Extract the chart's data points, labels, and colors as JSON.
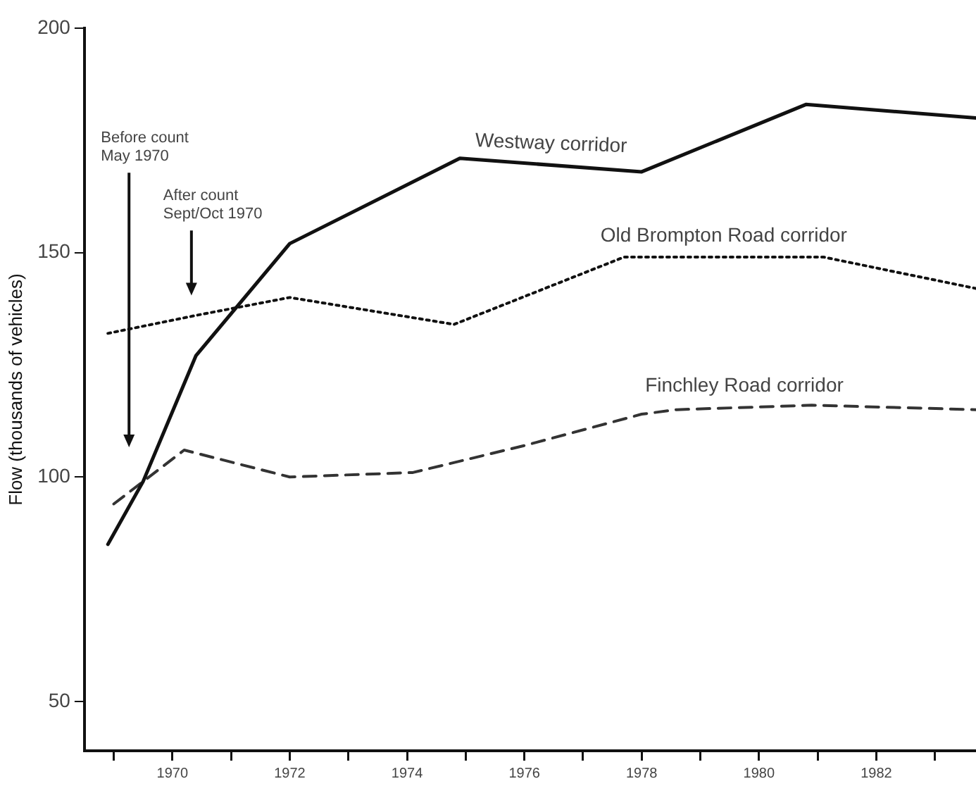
{
  "chart_data": {
    "type": "line",
    "ylabel": "Flow (thousands of vehicles)",
    "xlim": [
      1968.5,
      1983.7
    ],
    "ylim": [
      39,
      200
    ],
    "xticks": [
      {
        "value": 1969,
        "label": null
      },
      1970,
      {
        "value": 1971,
        "label": null
      },
      1972,
      {
        "value": 1973,
        "label": null
      },
      1974,
      {
        "value": 1975,
        "label": null
      },
      1976,
      {
        "value": 1977,
        "label": null
      },
      1978,
      {
        "value": 1979,
        "label": null
      },
      1980,
      {
        "value": 1981,
        "label": null
      },
      1982,
      {
        "value": 1983,
        "label": null
      }
    ],
    "yticks": [
      50,
      100,
      150,
      200
    ],
    "grid": false,
    "legend": false,
    "marker": "none",
    "series": [
      {
        "name": "Westway corridor",
        "color": "#111111",
        "line_style": "solid",
        "x": [
          1968.9,
          1969.5,
          1970.4,
          1972.0,
          1974.9,
          1978.0,
          1980.8,
          1983.7
        ],
        "values": [
          85,
          99,
          127,
          152,
          171,
          168,
          183,
          180
        ]
      },
      {
        "name": "Old Brompton Road corridor",
        "color": "#111111",
        "line_style": "dotted",
        "x": [
          1968.9,
          1970.4,
          1972.0,
          1974.8,
          1977.7,
          1981.1,
          1983.7
        ],
        "values": [
          132,
          136,
          140,
          134,
          149,
          149,
          142
        ]
      },
      {
        "name": "Finchley Road corridor",
        "color": "#333333",
        "line_style": "dashed",
        "x": [
          1969.0,
          1970.2,
          1972.0,
          1974.1,
          1976.0,
          1978.0,
          1978.6,
          1980.9,
          1983.7
        ],
        "values": [
          94,
          106,
          100,
          101,
          107,
          114,
          115,
          116,
          115
        ]
      }
    ],
    "annotations": [
      "Before count\nMay 1970",
      "After count\nSept/Oct 1970"
    ]
  }
}
